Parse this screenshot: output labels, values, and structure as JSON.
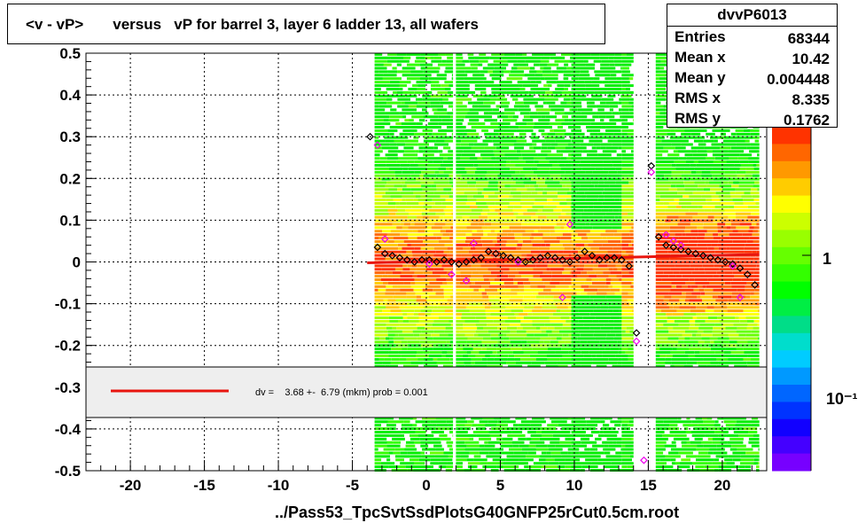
{
  "title": "<v - vP>       versus   vP for barrel 3, layer 6 ladder 13, all wafers",
  "stats": {
    "name": "dvvP6013",
    "rows": [
      {
        "label": "Entries",
        "value": "68344"
      },
      {
        "label": "Mean x",
        "value": "10.42"
      },
      {
        "label": "Mean y",
        "value": "0.004448"
      },
      {
        "label": "RMS x",
        "value": "8.335"
      },
      {
        "label": "RMS y",
        "value": "0.1762"
      }
    ]
  },
  "x_caption": "../Pass53_TpcSvtSsdPlotsG40GNFP25rCut0.5cm.root",
  "legend": {
    "text": "dv =    3.68 +-  6.79 (mkm) prob = 0.001",
    "line_color": "#e8150f"
  },
  "palette_labels": [
    "1",
    "10⁻¹"
  ],
  "chart_data": {
    "type": "heatmap",
    "title": "<v - vP>       versus   vP for barrel 3, layer 6 ladder 13, all wafers",
    "xlabel": "../Pass53_TpcSvtSsdPlotsG40GNFP25rCut0.5cm.root",
    "ylabel": "",
    "xlim": [
      -23,
      23
    ],
    "ylim": [
      -0.5,
      0.5
    ],
    "grid": true,
    "x_ticks": [
      -20,
      -15,
      -10,
      -5,
      0,
      5,
      10,
      15,
      20
    ],
    "y_ticks": [
      -0.5,
      -0.4,
      -0.3,
      -0.2,
      -0.1,
      0,
      0.1,
      0.2,
      0.3,
      0.4,
      0.5
    ],
    "x_tick_labels": [
      "-20",
      "-15",
      "-10",
      "-5",
      "0",
      "5",
      "10",
      "15",
      "20"
    ],
    "y_tick_labels": [
      "-0.5",
      "-0.4",
      "-0.3",
      "-0.2",
      "-0.1",
      "0",
      "0.1",
      "0.2",
      "0.3",
      "0.4",
      "0.5"
    ],
    "occupied_x_ranges": [
      [
        -3.5,
        1.8
      ],
      [
        2.0,
        9.8
      ],
      [
        9.8,
        13.2
      ],
      [
        13.2,
        14.0
      ],
      [
        15.5,
        22.5
      ]
    ],
    "fit_line": {
      "x": [
        -4,
        22.5
      ],
      "y": [
        -0.002,
        0.018
      ],
      "color": "#e8150f"
    },
    "profile_black": {
      "x": [
        -3.8,
        -3.3,
        -2.8,
        -2.3,
        -1.8,
        -1.3,
        -0.8,
        -0.3,
        0.2,
        0.7,
        1.2,
        1.7,
        2.2,
        2.7,
        3.2,
        3.7,
        4.2,
        4.7,
        5.2,
        5.7,
        6.2,
        6.7,
        7.2,
        7.7,
        8.2,
        8.7,
        9.2,
        9.7,
        10.2,
        10.7,
        11.2,
        11.7,
        12.2,
        12.7,
        13.2,
        13.7,
        14.2,
        15.2,
        15.7,
        16.2,
        16.7,
        17.2,
        17.7,
        18.2,
        18.7,
        19.2,
        19.7,
        20.2,
        20.7,
        21.2,
        21.7,
        22.2
      ],
      "y": [
        0.3,
        0.035,
        0.02,
        0.015,
        0.01,
        0.005,
        0.0,
        0.005,
        0.005,
        0.0,
        0.005,
        0.0,
        -0.005,
        0.0,
        0.005,
        0.01,
        0.025,
        0.02,
        0.015,
        0.01,
        0.005,
        0.0,
        0.005,
        0.01,
        0.015,
        0.01,
        0.005,
        0.0,
        0.01,
        0.025,
        0.015,
        0.005,
        0.01,
        0.01,
        0.005,
        -0.01,
        -0.17,
        0.23,
        0.06,
        0.04,
        0.035,
        0.03,
        0.025,
        0.02,
        0.015,
        0.01,
        0.005,
        0.0,
        -0.005,
        -0.015,
        -0.03,
        -0.055
      ]
    },
    "profile_magenta": {
      "x": [
        -3.3,
        -2.8,
        0.2,
        1.7,
        2.7,
        3.2,
        6.2,
        9.2,
        9.7,
        14.2,
        14.7,
        15.2,
        16.2,
        16.7,
        17.2,
        20.7,
        21.2
      ],
      "y": [
        0.28,
        0.055,
        -0.005,
        -0.03,
        -0.045,
        0.045,
        0.0,
        -0.085,
        0.09,
        -0.19,
        -0.475,
        0.215,
        0.065,
        0.05,
        0.04,
        -0.01,
        -0.085
      ]
    },
    "palette": {
      "labels": [
        "1",
        "10⁻¹"
      ]
    }
  }
}
